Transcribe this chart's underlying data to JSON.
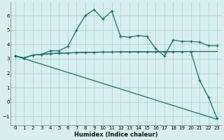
{
  "xlabel": "Humidex (Indice chaleur)",
  "background_color": "#d7efef",
  "grid_color": "#afd8d8",
  "line_color": "#1a6e6e",
  "xlim": [
    -0.5,
    23.5
  ],
  "ylim": [
    -1.6,
    6.9
  ],
  "yticks": [
    -1,
    0,
    1,
    2,
    3,
    4,
    5,
    6
  ],
  "xticks": [
    0,
    1,
    2,
    3,
    4,
    5,
    6,
    7,
    8,
    9,
    10,
    11,
    12,
    13,
    14,
    15,
    16,
    17,
    18,
    19,
    20,
    21,
    22,
    23
  ],
  "curve1_x": [
    0,
    1,
    2,
    3,
    4,
    5,
    6,
    7,
    8,
    9,
    10,
    11,
    12,
    13,
    14,
    15,
    16,
    17,
    18,
    19,
    20,
    21,
    22,
    23
  ],
  "curve1_y": [
    3.2,
    3.05,
    3.25,
    3.3,
    3.55,
    3.55,
    3.85,
    5.0,
    6.0,
    6.4,
    5.75,
    6.3,
    4.55,
    4.5,
    4.6,
    4.55,
    3.7,
    3.18,
    4.3,
    4.2,
    4.2,
    4.15,
    3.9,
    3.9
  ],
  "curve2_x": [
    0,
    1,
    2,
    3,
    4,
    5,
    6,
    7,
    8,
    9,
    10,
    11,
    12,
    13,
    14,
    15,
    16,
    17,
    18,
    19,
    20,
    21,
    22,
    23
  ],
  "curve2_y": [
    3.2,
    3.05,
    3.25,
    3.3,
    3.35,
    3.38,
    3.4,
    3.42,
    3.44,
    3.45,
    3.46,
    3.46,
    3.47,
    3.47,
    3.48,
    3.48,
    3.48,
    3.49,
    3.49,
    3.5,
    3.5,
    3.5,
    3.5,
    3.5
  ],
  "curve3_x": [
    0,
    23
  ],
  "curve3_y": [
    3.2,
    -1.2
  ],
  "curve4_x": [
    0,
    1,
    2,
    3,
    4,
    5,
    6,
    7,
    8,
    9,
    10,
    11,
    12,
    13,
    14,
    15,
    16,
    17,
    18,
    19,
    20,
    21,
    22,
    23
  ],
  "curve4_y": [
    3.2,
    3.05,
    3.25,
    3.3,
    3.35,
    3.38,
    3.4,
    3.42,
    3.44,
    3.45,
    3.46,
    3.46,
    3.47,
    3.47,
    3.48,
    3.48,
    3.48,
    3.49,
    3.49,
    3.5,
    3.5,
    1.5,
    0.35,
    -1.15
  ]
}
